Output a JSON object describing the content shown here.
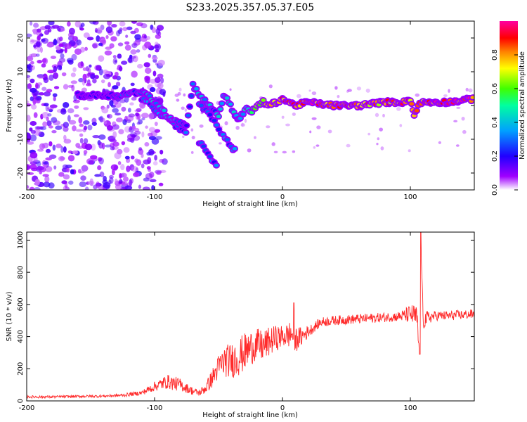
{
  "title": "S233.2025.357.05.37.E05",
  "chart_data": [
    {
      "type": "heatmap",
      "title": "S233.2025.357.05.37.E05",
      "xlabel": "Height of straight line (km)",
      "ylabel": "Frequency (Hz)",
      "xlim": [
        -200,
        150
      ],
      "ylim": [
        -25,
        25
      ],
      "xticks": [
        -200,
        -100,
        0,
        100
      ],
      "yticks": [
        -20,
        -10,
        0,
        10,
        20
      ],
      "colorbar": {
        "label": "Normalized spectral amplitude",
        "range": [
          0.0,
          1.0
        ],
        "ticks": [
          "0.0",
          "0.2",
          "0.4",
          "0.6",
          "0.8"
        ],
        "colormap": [
          "#ffffff",
          "#a000ff",
          "#2000ff",
          "#00a0ff",
          "#00ffa0",
          "#40ff00",
          "#ffff00",
          "#ff8000",
          "#ff0000",
          "#ff00a0"
        ]
      },
      "ridge": {
        "x": [
          -160,
          -130,
          -112,
          -105,
          -100,
          -95,
          -90,
          -85,
          -80,
          -75,
          -70,
          -66,
          -62,
          -58,
          -54,
          -50,
          -46,
          -42,
          -38,
          -35,
          -32,
          -28,
          -24,
          -20,
          -15,
          -10,
          -5,
          0,
          5,
          10,
          20,
          40,
          60,
          80,
          95,
          100,
          103,
          106,
          110,
          130,
          150
        ],
        "y": [
          3,
          3,
          4,
          3,
          1,
          -1,
          -3,
          -4,
          -5,
          -6,
          6,
          4,
          2,
          0,
          -1,
          -3,
          3,
          1,
          -2,
          -4,
          -3,
          -1,
          -2,
          0,
          1,
          0,
          1,
          2,
          1,
          0,
          1,
          0,
          0,
          1,
          1,
          2,
          -3,
          0,
          1,
          1,
          2
        ],
        "amplitude": [
          0.2,
          0.25,
          0.3,
          0.35,
          0.4,
          0.35,
          0.4,
          0.35,
          0.3,
          0.25,
          0.3,
          0.35,
          0.4,
          0.35,
          0.3,
          0.35,
          0.4,
          0.35,
          0.4,
          0.35,
          0.4,
          0.45,
          0.5,
          0.55,
          0.6,
          0.7,
          0.75,
          0.8,
          0.85,
          0.9,
          0.9,
          0.85,
          0.85,
          0.8,
          0.85,
          0.8,
          0.7,
          0.8,
          0.85,
          0.9,
          0.9
        ]
      },
      "branches": [
        {
          "x": [
            -110,
            -100,
            -90,
            -80,
            -74
          ],
          "y": [
            2,
            -1,
            -4,
            -7,
            -9
          ]
        },
        {
          "x": [
            -65,
            -55,
            -48,
            -40,
            -36
          ],
          "y": [
            1,
            -4,
            -8,
            -12,
            -14
          ]
        },
        {
          "x": [
            -65,
            -60,
            -55,
            -50
          ],
          "y": [
            -11,
            -13,
            -16,
            -19
          ]
        }
      ]
    },
    {
      "type": "line",
      "xlabel": "Height of straight line (km)",
      "ylabel": "SNR (10 * v/v)",
      "xlim": [
        -200,
        150
      ],
      "ylim": [
        0,
        1050
      ],
      "xticks": [
        -200,
        -100,
        0,
        100
      ],
      "yticks": [
        0,
        200,
        400,
        600,
        800,
        1000
      ],
      "color": "#ff2a2a",
      "series": [
        {
          "name": "SNR",
          "x": [
            -200,
            -180,
            -160,
            -140,
            -125,
            -110,
            -100,
            -90,
            -85,
            -80,
            -75,
            -70,
            -65,
            -60,
            -55,
            -50,
            -45,
            -40,
            -35,
            -30,
            -25,
            -20,
            -15,
            -10,
            -5,
            0,
            5,
            8,
            10,
            15,
            20,
            25,
            30,
            40,
            50,
            60,
            70,
            80,
            90,
            95,
            100,
            105,
            107,
            108,
            110,
            115,
            120,
            130,
            140,
            150
          ],
          "values": [
            25,
            25,
            28,
            30,
            35,
            50,
            90,
            120,
            110,
            100,
            80,
            60,
            50,
            80,
            140,
            210,
            250,
            250,
            270,
            300,
            330,
            350,
            340,
            370,
            390,
            400,
            410,
            420,
            380,
            400,
            430,
            460,
            490,
            500,
            505,
            510,
            515,
            520,
            525,
            530,
            540,
            520,
            300,
            1050,
            500,
            520,
            530,
            530,
            535,
            540
          ],
          "jitter": [
            8,
            8,
            8,
            8,
            10,
            15,
            30,
            45,
            45,
            40,
            30,
            25,
            20,
            35,
            60,
            80,
            100,
            110,
            120,
            120,
            110,
            100,
            100,
            90,
            80,
            70,
            80,
            100,
            80,
            60,
            40,
            30,
            30,
            30,
            30,
            30,
            30,
            30,
            30,
            40,
            60,
            80,
            40,
            0,
            60,
            40,
            30,
            30,
            30,
            30
          ]
        }
      ]
    }
  ]
}
